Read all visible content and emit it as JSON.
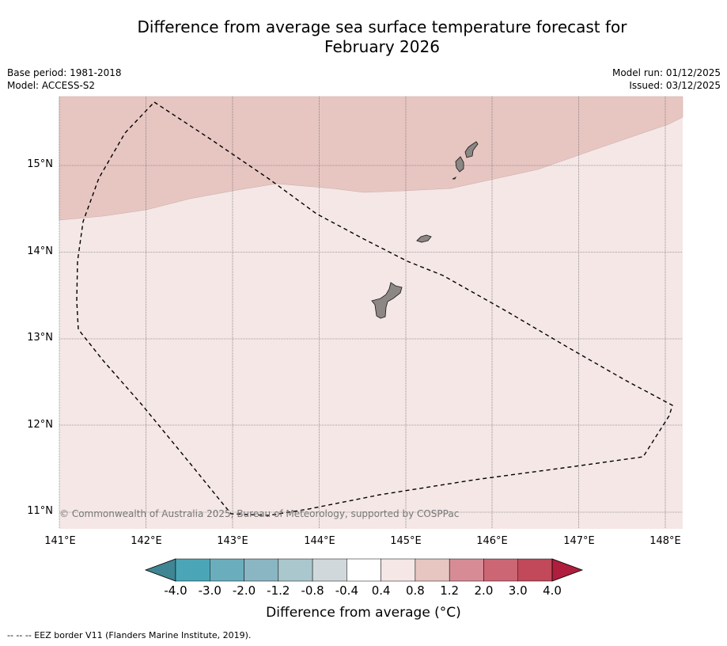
{
  "title": {
    "line1": "Difference from average sea surface temperature forecast for",
    "line2": "February 2026"
  },
  "meta_left": {
    "base_period": "Base period: 1981-2018",
    "model": "Model: ACCESS-S2"
  },
  "meta_right": {
    "model_run": "Model run: 01/12/2025",
    "issued": "Issued: 03/12/2025"
  },
  "map": {
    "lon_range": [
      141,
      148.2
    ],
    "lat_range": [
      10.8,
      15.8
    ],
    "lat_labels": [
      "15°N",
      "14°N",
      "13°N",
      "12°N",
      "11°N"
    ],
    "lon_labels": [
      "141°E",
      "142°E",
      "143°E",
      "144°E",
      "145°E",
      "146°E",
      "147°E",
      "148°E"
    ],
    "regions": [
      {
        "name": "anomaly 0.8 to 1.2",
        "color": "#e7c6c2"
      },
      {
        "name": "anomaly 0.4 to 0.8",
        "color": "#f4e7e6"
      }
    ],
    "islands": [
      "Guam",
      "Rota",
      "Aguijan",
      "Tinian",
      "Saipan"
    ],
    "land_color": "#8c8784",
    "eez_border": "EEZ dashed line",
    "copyright": "© Commonwealth of Australia 2025, Bureau of Meteorology, supported by COSPPac"
  },
  "colorbar": {
    "title": "Difference from average (°C)",
    "ticks": [
      "-4.0",
      "-3.0",
      "-2.0",
      "-1.2",
      "-0.8",
      "-0.4",
      "0.4",
      "0.8",
      "1.2",
      "2.0",
      "3.0",
      "4.0"
    ],
    "colors": [
      "#4aa6b7",
      "#6aaebe",
      "#8ab6c3",
      "#a9c7cc",
      "#d0d8db",
      "#ffffff",
      "#f4e7e6",
      "#e7c6c2",
      "#d78c95",
      "#cd6674",
      "#c2495a"
    ],
    "under_color": "#3f8593",
    "over_color": "#b01e3d"
  },
  "legend": {
    "text": "-- -- -- EEZ border V11 (Flanders Marine Institute, 2019)."
  }
}
